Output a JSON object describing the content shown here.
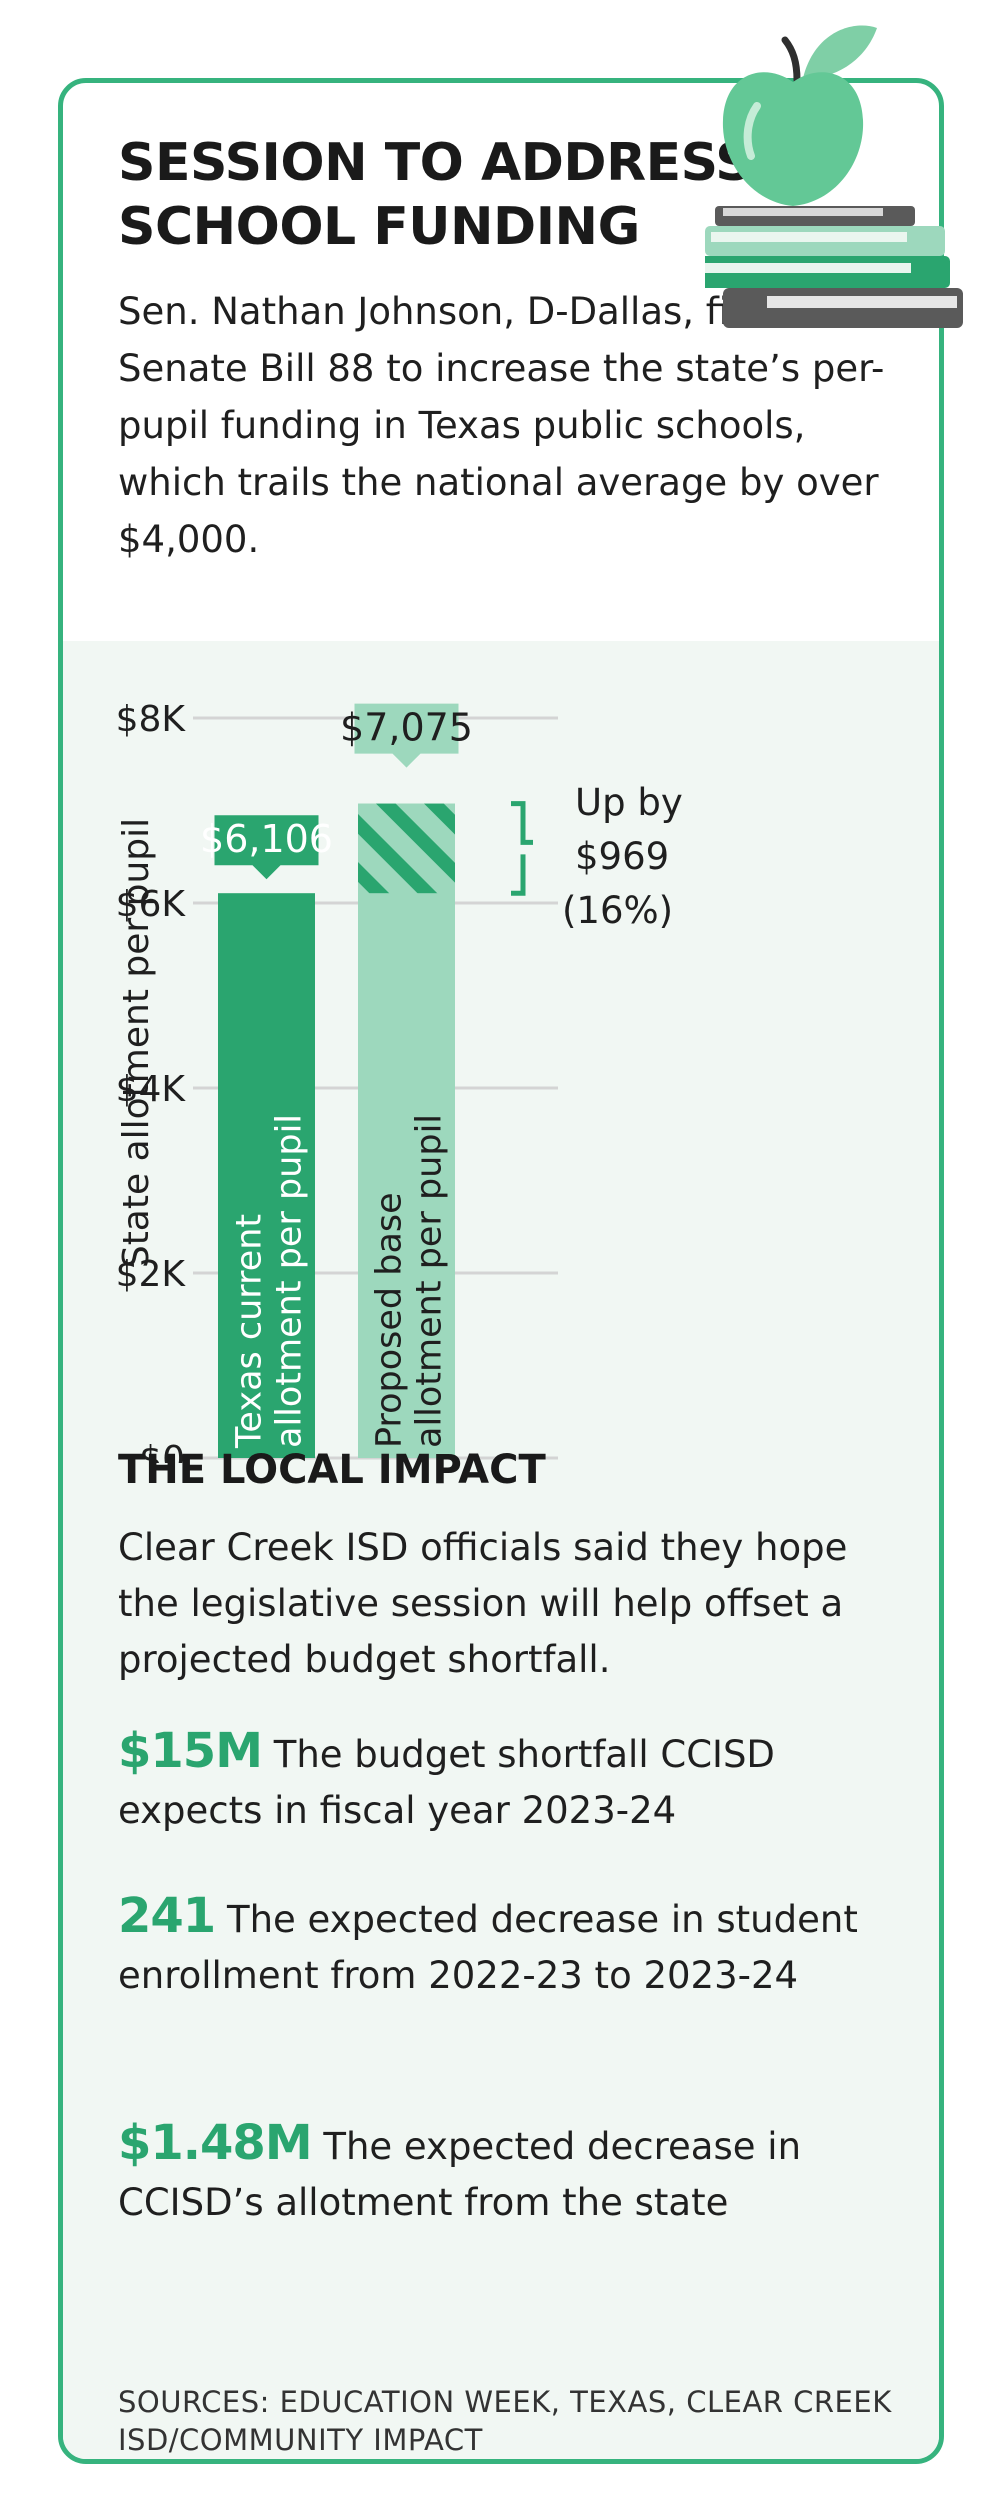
{
  "title": "SESSION TO ADDRESS SCHOOL FUNDING",
  "intro": "Sen. Nathan Johnson, D-Dallas, filed Senate Bill 88 to increase the state’s per-pupil funding in Texas public schools, which trails the national average by over $4,000.",
  "chart_data": {
    "type": "bar",
    "title": "",
    "xlabel": "",
    "ylabel": "State allotment per pupil",
    "ylim": [
      0,
      8000
    ],
    "yticks": [
      0,
      2000,
      4000,
      6000,
      8000
    ],
    "ytick_labels": [
      "$0",
      "$2K",
      "$4K",
      "$6K",
      "$8K"
    ],
    "categories": [
      "Texas current allotment per pupil",
      "Proposed base allotment per pupil"
    ],
    "values": [
      6106,
      7075
    ],
    "value_labels": [
      "$6,106",
      "$7,075"
    ],
    "bar_colors": [
      "#2aa56f",
      "#9dd8bd"
    ],
    "increase": {
      "line1": "Up by",
      "line2": "$969",
      "line3": "(16%)",
      "amount": 969,
      "percent": 16
    },
    "grid": true
  },
  "impact": {
    "heading": "THE LOCAL IMPACT",
    "intro": "Clear Creek ISD officials said they hope the legislative session will help offset a projected budget shortfall.",
    "stats": [
      {
        "value": "$15M",
        "text": "The budget shortfall CCISD expects in fiscal year 2023-24"
      },
      {
        "value": "241",
        "text": "The expected decrease in student enrollment from 2022-23 to 2023-24"
      },
      {
        "value": "$1.48M",
        "text": "The expected decrease in CCISD’s allotment from the state"
      }
    ]
  },
  "sources": "SOURCES: EDUCATION WEEK, TEXAS, CLEAR CREEK ISD/COMMUNITY IMPACT",
  "colors": {
    "accent": "#36b37e",
    "dark_green": "#2aa56f",
    "light_green": "#9dd8bd",
    "panel_bg": "#f1f7f3"
  },
  "icons": {
    "illustration": "apple-on-books-icon"
  }
}
